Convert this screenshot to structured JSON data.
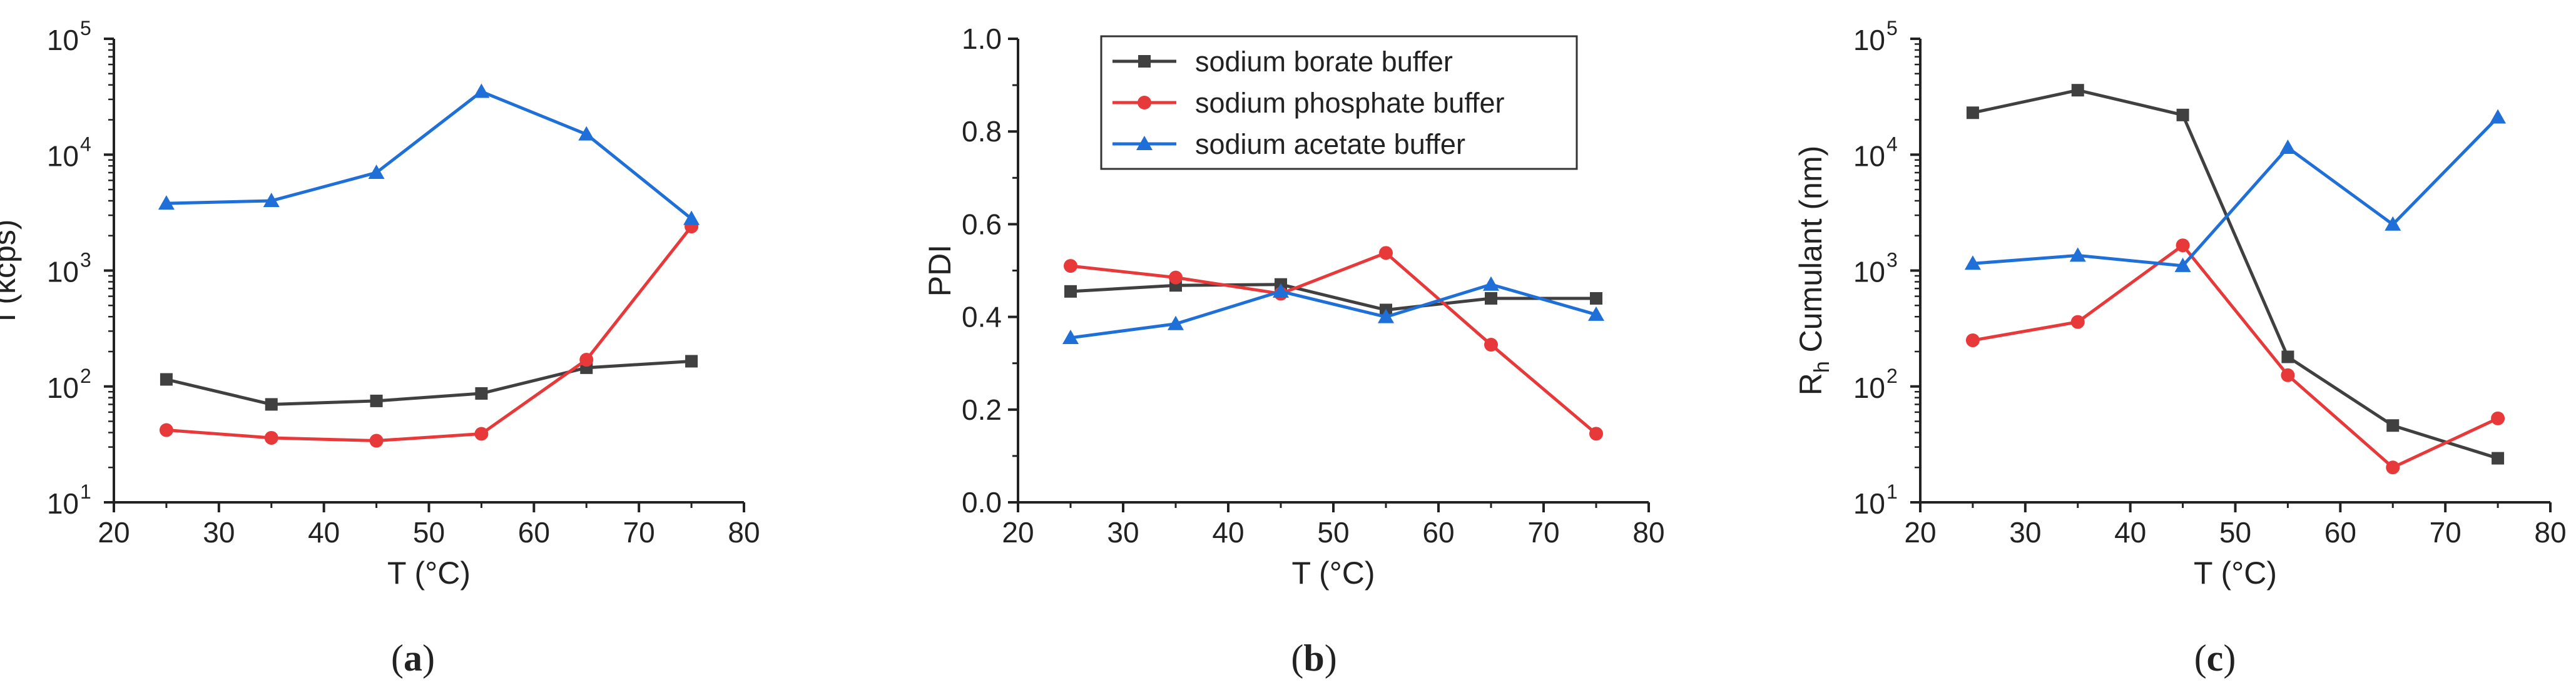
{
  "colors": {
    "borate": "#404040",
    "phosphate": "#e8393a",
    "acetate": "#1f6fd8",
    "axis": "#222222"
  },
  "legend": {
    "entries": [
      "sodium borate buffer",
      "sodium phosphate buffer",
      "sodium acetate buffer"
    ],
    "placement": "top-center of panel b"
  },
  "panel_labels": [
    "a",
    "b",
    "c"
  ],
  "chart_data": [
    {
      "type": "line",
      "panel": "a",
      "xlabel": "T (°C)",
      "ylabel": "I (kcps)",
      "xlim": [
        20,
        80
      ],
      "ylim": [
        10,
        100000
      ],
      "yscale": "log",
      "xticks": [
        20,
        30,
        40,
        50,
        60,
        70,
        80
      ],
      "yticks": [
        10,
        100,
        1000,
        10000,
        100000
      ],
      "ytick_labels": [
        "10",
        "10",
        "10",
        "10",
        "10"
      ],
      "ytick_exponents": [
        "1",
        "2",
        "3",
        "4",
        "5"
      ],
      "x": [
        25,
        35,
        45,
        55,
        65,
        75
      ],
      "series": [
        {
          "name": "sodium borate buffer",
          "marker": "square",
          "values": [
            115,
            70,
            75,
            87,
            145,
            165
          ]
        },
        {
          "name": "sodium phosphate buffer",
          "marker": "circle",
          "values": [
            42,
            36,
            34,
            39,
            170,
            2400
          ]
        },
        {
          "name": "sodium acetate buffer",
          "marker": "triangle",
          "values": [
            3800,
            4000,
            7000,
            35000,
            15000,
            2800
          ]
        }
      ]
    },
    {
      "type": "line",
      "panel": "b",
      "xlabel": "T (°C)",
      "ylabel": "PDI",
      "xlim": [
        20,
        80
      ],
      "ylim": [
        0,
        1
      ],
      "yscale": "linear",
      "xticks": [
        20,
        30,
        40,
        50,
        60,
        70,
        80
      ],
      "yticks": [
        0,
        0.2,
        0.4,
        0.6,
        0.8,
        1.0
      ],
      "ytick_labels": [
        "0.0",
        "0.2",
        "0.4",
        "0.6",
        "0.8",
        "1.0"
      ],
      "x": [
        25,
        35,
        45,
        55,
        65,
        75
      ],
      "series": [
        {
          "name": "sodium borate buffer",
          "marker": "square",
          "values": [
            0.455,
            0.468,
            0.47,
            0.415,
            0.44,
            0.44
          ]
        },
        {
          "name": "sodium phosphate buffer",
          "marker": "circle",
          "values": [
            0.51,
            0.485,
            0.45,
            0.538,
            0.34,
            0.148
          ]
        },
        {
          "name": "sodium acetate buffer",
          "marker": "triangle",
          "values": [
            0.355,
            0.385,
            0.455,
            0.4,
            0.47,
            0.405
          ]
        }
      ]
    },
    {
      "type": "line",
      "panel": "c",
      "xlabel": "T (°C)",
      "ylabel_main": "R",
      "ylabel_sub": "h",
      "ylabel_rest": " Cumulant (nm)",
      "xlim": [
        20,
        80
      ],
      "ylim": [
        10,
        100000
      ],
      "yscale": "log",
      "xticks": [
        20,
        30,
        40,
        50,
        60,
        70,
        80
      ],
      "yticks": [
        10,
        100,
        1000,
        10000,
        100000
      ],
      "ytick_labels": [
        "10",
        "10",
        "10",
        "10",
        "10"
      ],
      "ytick_exponents": [
        "1",
        "2",
        "3",
        "4",
        "5"
      ],
      "x": [
        25,
        35,
        45,
        55,
        65,
        75
      ],
      "series": [
        {
          "name": "sodium borate buffer",
          "marker": "square",
          "values": [
            23000,
            36000,
            22000,
            180,
            46,
            24
          ]
        },
        {
          "name": "sodium phosphate buffer",
          "marker": "circle",
          "values": [
            250,
            360,
            1650,
            125,
            20,
            53
          ]
        },
        {
          "name": "sodium acetate buffer",
          "marker": "triangle",
          "values": [
            1150,
            1350,
            1100,
            11500,
            2500,
            21000
          ]
        }
      ]
    }
  ]
}
